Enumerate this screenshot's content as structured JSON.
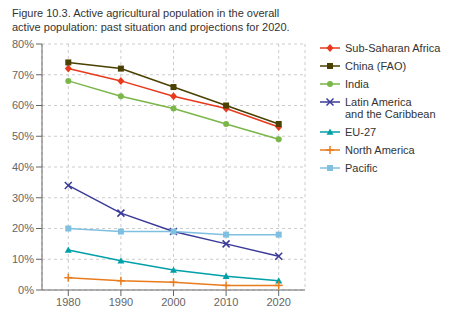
{
  "chart_data": {
    "type": "line",
    "title": "Figure 10.3. Active agricultural population in the overall\nactive population: past situation and projections for 2020.",
    "x": [
      1980,
      1990,
      2000,
      2010,
      2020
    ],
    "xlim": [
      1975,
      2025
    ],
    "xticks": [
      1980,
      1990,
      2000,
      2010,
      2020
    ],
    "ylim": [
      0,
      80
    ],
    "yticks": [
      {
        "value": 0,
        "label": "0%"
      },
      {
        "value": 10,
        "label": "10%"
      },
      {
        "value": 20,
        "label": "20%"
      },
      {
        "value": 30,
        "label": "30%"
      },
      {
        "value": 40,
        "label": "40%"
      },
      {
        "value": 50,
        "label": "50%"
      },
      {
        "value": 60,
        "label": "60%"
      },
      {
        "value": 70,
        "label": "70%"
      },
      {
        "value": 80,
        "label": "80%"
      }
    ],
    "grid": true,
    "legend": "right",
    "series": [
      {
        "name": "Sub-Saharan Africa",
        "color": "#e8391d",
        "marker": "diamond",
        "values": [
          72,
          68,
          63,
          59,
          53
        ]
      },
      {
        "name": "China (FAO)",
        "color": "#4a4000",
        "marker": "square",
        "values": [
          74,
          72,
          66,
          60,
          54
        ]
      },
      {
        "name": "India",
        "color": "#7ab648",
        "marker": "circle",
        "values": [
          68,
          63,
          59,
          54,
          49
        ]
      },
      {
        "name": "Latin America\nand the Caribbean",
        "color": "#3a3a99",
        "marker": "x",
        "values": [
          34,
          25,
          19,
          15,
          11
        ]
      },
      {
        "name": "EU-27",
        "color": "#00a0a8",
        "marker": "triangle",
        "values": [
          13,
          9.5,
          6.5,
          4.5,
          3
        ]
      },
      {
        "name": "North America",
        "color": "#e87c1e",
        "marker": "plus",
        "values": [
          4,
          3,
          2.5,
          1.5,
          1.5
        ]
      },
      {
        "name": "Pacific",
        "color": "#7fbfdf",
        "marker": "square",
        "values": [
          20,
          19,
          19,
          18,
          18
        ]
      }
    ]
  }
}
